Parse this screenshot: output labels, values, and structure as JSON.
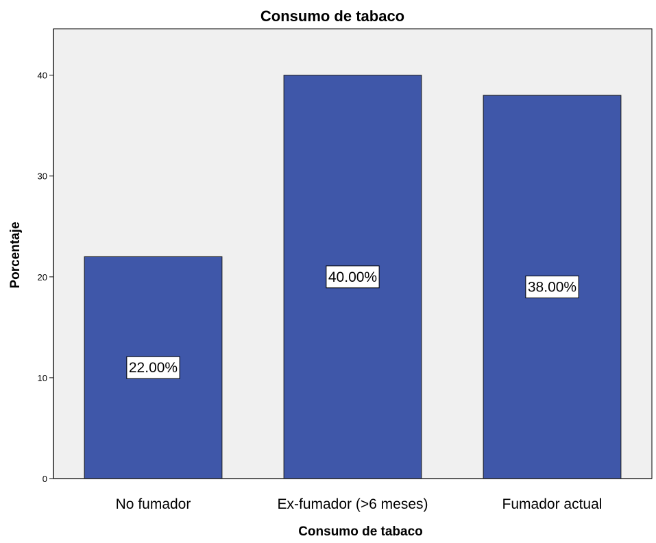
{
  "chart_data": {
    "type": "bar",
    "title": "Consumo de tabaco",
    "xlabel": "Consumo de tabaco",
    "ylabel": "Porcentaje",
    "categories": [
      "No fumador",
      "Ex-fumador (>6 meses)",
      "Fumador actual"
    ],
    "values": [
      22,
      40,
      38
    ],
    "data_labels": [
      "22.00%",
      "40.00%",
      "38.00%"
    ],
    "yticks": [
      "0",
      "10",
      "20",
      "30",
      "40"
    ],
    "ylim": [
      0,
      44.6
    ],
    "grid": false,
    "legend": "none",
    "colors": {
      "bar": "#3f57a9",
      "bar_stroke": "#1a1a1a",
      "plot_bg": "#f0f0f0",
      "page_bg": "#ffffff"
    }
  }
}
